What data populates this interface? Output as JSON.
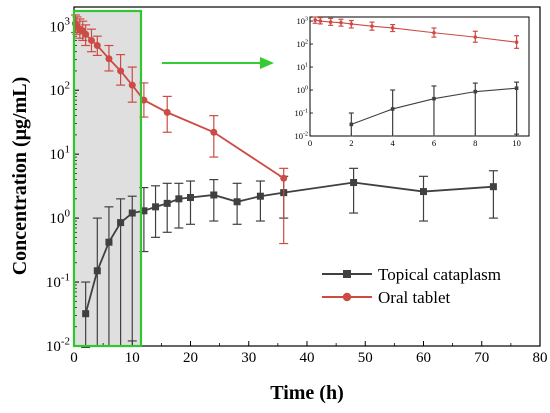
{
  "chart_data": {
    "type": "line",
    "xlabel": "Time (h)",
    "ylabel": "Concentration (μg/mL)",
    "x_ticks": [
      "0",
      "10",
      "20",
      "30",
      "40",
      "50",
      "60",
      "70",
      "80"
    ],
    "y_ticks": [
      "10-2",
      "10-1",
      "100",
      "101",
      "102",
      "103"
    ],
    "xlim": [
      0,
      80
    ],
    "ylim": [
      0.01,
      2000
    ],
    "y_scale": "log",
    "legend": "bottom-right",
    "highlight_region": {
      "x": [
        0,
        11.5
      ],
      "color": "#d9d9d9",
      "border": "#2fc82f"
    },
    "arrow_color": "#33cc33",
    "series": [
      {
        "name": "Topical cataplasm",
        "color": "#404040",
        "marker": "square",
        "x": [
          2,
          4,
          6,
          8,
          10,
          12,
          14,
          16,
          18,
          20,
          24,
          28,
          32,
          36,
          48,
          60,
          72
        ],
        "y": [
          0.032,
          0.15,
          0.42,
          0.85,
          1.2,
          1.3,
          1.5,
          1.7,
          2.0,
          2.1,
          2.3,
          1.8,
          2.2,
          2.5,
          3.6,
          2.6,
          3.1
        ],
        "err_low": [
          0.0095,
          0.01,
          0.01,
          0.01,
          0.012,
          0.3,
          0.5,
          0.6,
          0.7,
          0.8,
          0.9,
          0.8,
          0.9,
          1.0,
          1.2,
          0.9,
          1.0
        ],
        "err_high": [
          0.1,
          1.0,
          1.5,
          2.0,
          2.2,
          3.0,
          3.2,
          3.5,
          3.5,
          3.8,
          4.0,
          3.5,
          3.8,
          4.5,
          6.0,
          4.5,
          5.5
        ]
      },
      {
        "name": "Oral tablet",
        "color": "#cc4b44",
        "marker": "circle",
        "x": [
          0.25,
          0.5,
          1,
          1.5,
          2,
          3,
          4,
          6,
          8,
          10,
          12,
          16,
          24,
          36
        ],
        "y": [
          1100,
          1000,
          900,
          850,
          750,
          600,
          500,
          310,
          200,
          120,
          70,
          45,
          22,
          4.2
        ],
        "err_low": [
          800,
          750,
          650,
          600,
          500,
          400,
          350,
          200,
          120,
          65,
          38,
          22,
          9,
          0.4
        ],
        "err_high": [
          1500,
          1400,
          1300,
          1200,
          1050,
          900,
          700,
          500,
          360,
          230,
          130,
          80,
          40,
          6
        ]
      }
    ],
    "inset": {
      "xlim": [
        0,
        10.6
      ],
      "ylim": [
        0.01,
        1500
      ],
      "x_ticks": [
        "0",
        "2",
        "4",
        "6",
        "8",
        "10"
      ],
      "y_ticks": [
        "10-2",
        "10-1",
        "100",
        "101",
        "102",
        "103"
      ]
    }
  }
}
